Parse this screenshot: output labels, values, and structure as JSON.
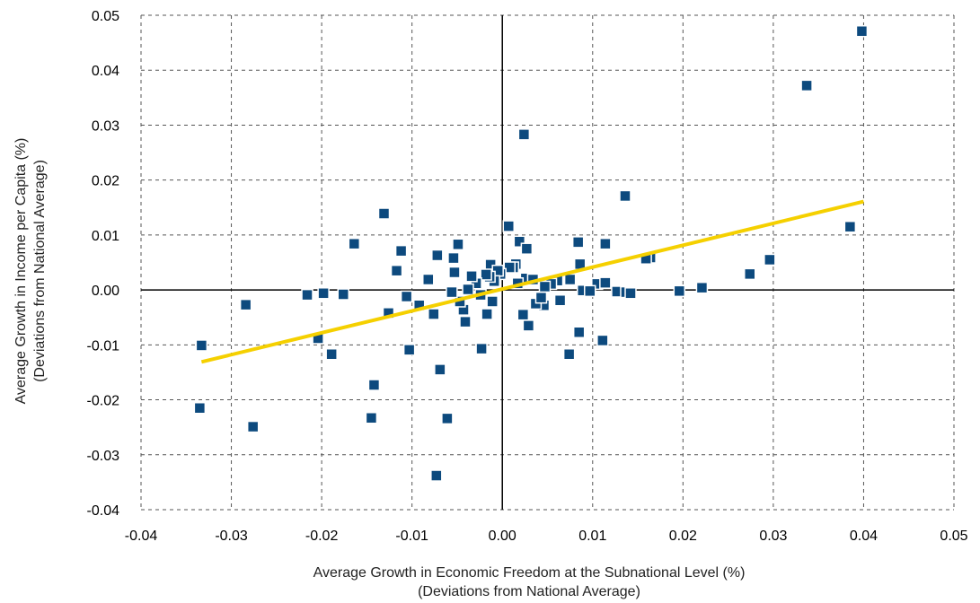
{
  "chart_data": {
    "type": "scatter",
    "xlabel": [
      "Average Growth in Economic Freedom at the Subnational Level (%)",
      "(Deviations from National Average)"
    ],
    "ylabel": [
      "Average Growth in Income per Capita (%)",
      "(Deviations from National Average)"
    ],
    "xlim": [
      -0.04,
      0.05
    ],
    "ylim": [
      -0.04,
      0.05
    ],
    "x_ticks": [
      "-0.04",
      "-0.03",
      "-0.02",
      "-0.01",
      "0.00",
      "0.01",
      "0.02",
      "0.03",
      "0.04",
      "0.05"
    ],
    "y_ticks": [
      "-0.04",
      "-0.03",
      "-0.02",
      "-0.01",
      "0.00",
      "0.01",
      "0.02",
      "0.03",
      "0.04",
      "0.05"
    ],
    "grid": true,
    "colors": {
      "points": "#0d4a7e",
      "trendline": "#f5d000",
      "grid": "#555555",
      "axes": "#000000"
    },
    "series": [
      {
        "points": [
          [
            0.0398,
            0.0471
          ],
          [
            0.0337,
            0.0372
          ],
          [
            0.0024,
            0.0283
          ],
          [
            0.0385,
            0.0115
          ],
          [
            0.0296,
            0.0055
          ],
          [
            0.0274,
            0.0029
          ],
          [
            0.0221,
            0.0004
          ],
          [
            0.0196,
            -0.0002
          ],
          [
            0.0136,
            0.0171
          ],
          [
            0.0114,
            0.0084
          ],
          [
            0.0164,
            0.0059
          ],
          [
            0.0159,
            0.0057
          ],
          [
            0.0084,
            0.0087
          ],
          [
            0.0086,
            0.0047
          ],
          [
            0.0105,
            0.0011
          ],
          [
            0.0114,
            0.0013
          ],
          [
            0.0127,
            -0.0003
          ],
          [
            0.0137,
            -0.0004
          ],
          [
            0.0142,
            -0.0006
          ],
          [
            0.0089,
            -0.0001
          ],
          [
            0.0097,
            -0.0002
          ],
          [
            0.0111,
            -0.0092
          ],
          [
            0.0085,
            -0.0077
          ],
          [
            0.0074,
            -0.0117
          ],
          [
            0.0075,
            0.0019
          ],
          [
            0.0061,
            0.0017
          ],
          [
            0.0054,
            0.0011
          ],
          [
            0.0064,
            -0.0019
          ],
          [
            0.0047,
            0.0006
          ],
          [
            0.0046,
            -0.0028
          ],
          [
            0.0037,
            -0.0025
          ],
          [
            0.0043,
            -0.0014
          ],
          [
            0.0007,
            0.0116
          ],
          [
            0.0019,
            0.0088
          ],
          [
            0.0027,
            0.0075
          ],
          [
            0.0015,
            0.0047
          ],
          [
            0.0012,
            0.0041
          ],
          [
            0.0026,
            0.0021
          ],
          [
            0.0034,
            0.0019
          ],
          [
            0.0017,
            0.0012
          ],
          [
            0.0023,
            -0.0045
          ],
          [
            0.0029,
            -0.0065
          ],
          [
            0.0008,
            0.0041
          ],
          [
            -0.0013,
            0.0046
          ],
          [
            -0.0002,
            0.0029
          ],
          [
            -0.0005,
            0.0035
          ],
          [
            -0.0009,
            0.0016
          ],
          [
            -0.0014,
            0.0024
          ],
          [
            -0.0011,
            -0.0021
          ],
          [
            -0.0017,
            -0.0044
          ],
          [
            -0.0023,
            -0.0107
          ],
          [
            -0.0018,
            0.0028
          ],
          [
            -0.0024,
            -0.0009
          ],
          [
            -0.0029,
            0.0012
          ],
          [
            -0.0034,
            0.0025
          ],
          [
            -0.0038,
            0.0001
          ],
          [
            -0.0041,
            -0.0058
          ],
          [
            -0.0043,
            -0.0036
          ],
          [
            -0.0047,
            -0.0021
          ],
          [
            -0.0049,
            0.0083
          ],
          [
            -0.0054,
            0.0058
          ],
          [
            -0.0053,
            0.0032
          ],
          [
            -0.0056,
            -0.0004
          ],
          [
            -0.0061,
            -0.0234
          ],
          [
            -0.0069,
            -0.0145
          ],
          [
            -0.0072,
            0.0063
          ],
          [
            -0.0076,
            -0.0044
          ],
          [
            -0.0073,
            -0.0338
          ],
          [
            -0.0082,
            0.0019
          ],
          [
            -0.0092,
            -0.0028
          ],
          [
            -0.0103,
            -0.0109
          ],
          [
            -0.0106,
            -0.0012
          ],
          [
            -0.0112,
            0.0071
          ],
          [
            -0.0117,
            0.0035
          ],
          [
            -0.0126,
            -0.0042
          ],
          [
            -0.0131,
            0.0139
          ],
          [
            -0.0142,
            -0.0173
          ],
          [
            -0.0145,
            -0.0233
          ],
          [
            -0.0164,
            0.0084
          ],
          [
            -0.0176,
            -0.0008
          ],
          [
            -0.0189,
            -0.0117
          ],
          [
            -0.0198,
            -0.0006
          ],
          [
            -0.0204,
            -0.0088
          ],
          [
            -0.0216,
            -0.0009
          ],
          [
            -0.0276,
            -0.0249
          ],
          [
            -0.0284,
            -0.0027
          ],
          [
            -0.0333,
            -0.0101
          ],
          [
            -0.0335,
            -0.0215
          ]
        ]
      }
    ],
    "trendline": {
      "x": [
        -0.0333,
        0.04
      ],
      "y": [
        -0.0131,
        0.0161
      ]
    }
  }
}
